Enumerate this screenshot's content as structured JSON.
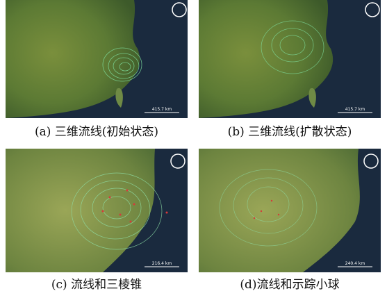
{
  "panels": [
    {
      "caption": "(a) 三维流线(初始状态)",
      "scale": "415.7 km"
    },
    {
      "caption": "(b) 三维流线(扩散状态)",
      "scale": "415.7 km"
    },
    {
      "caption": "(c) 流线和三棱锥",
      "scale": "216.4 km"
    },
    {
      "caption": "(d)流线和示踪小球",
      "scale": "240.4 km"
    }
  ]
}
